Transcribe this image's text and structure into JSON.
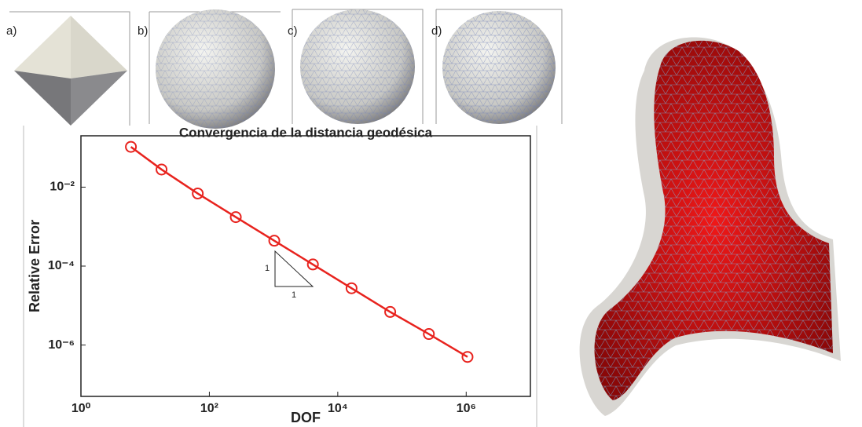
{
  "chart_data": {
    "type": "line",
    "title": "Convergencia de la distancia geodésica",
    "x_label": "DOF",
    "y_label": "Relative Error",
    "x": [
      6,
      18,
      66,
      258,
      1026,
      4098,
      16386,
      65538,
      262146,
      1048578
    ],
    "values": [
      0.105,
      0.028,
      0.0069,
      0.00174,
      0.00044,
      0.00011,
      2.75e-05,
      6.9e-06,
      1.9e-06,
      5e-07
    ],
    "color": "#e8231e",
    "log_x": true,
    "log_y": true,
    "xlim": [
      1,
      10000000
    ],
    "ylim": [
      5e-08,
      0.2
    ],
    "xticks": [
      {
        "value": 1,
        "label": "10⁰"
      },
      {
        "value": 100,
        "label": "10²"
      },
      {
        "value": 10000,
        "label": "10⁴"
      },
      {
        "value": 1000000,
        "label": "10⁶"
      }
    ],
    "yticks": [
      {
        "value": 1e-06,
        "label": "10⁻⁶"
      },
      {
        "value": 0.0001,
        "label": "10⁻⁴"
      },
      {
        "value": 0.01,
        "label": "10⁻²"
      }
    ],
    "annotations": [
      "1",
      "1"
    ]
  },
  "panels": [
    "a)",
    "b)",
    "c)",
    "d)"
  ]
}
